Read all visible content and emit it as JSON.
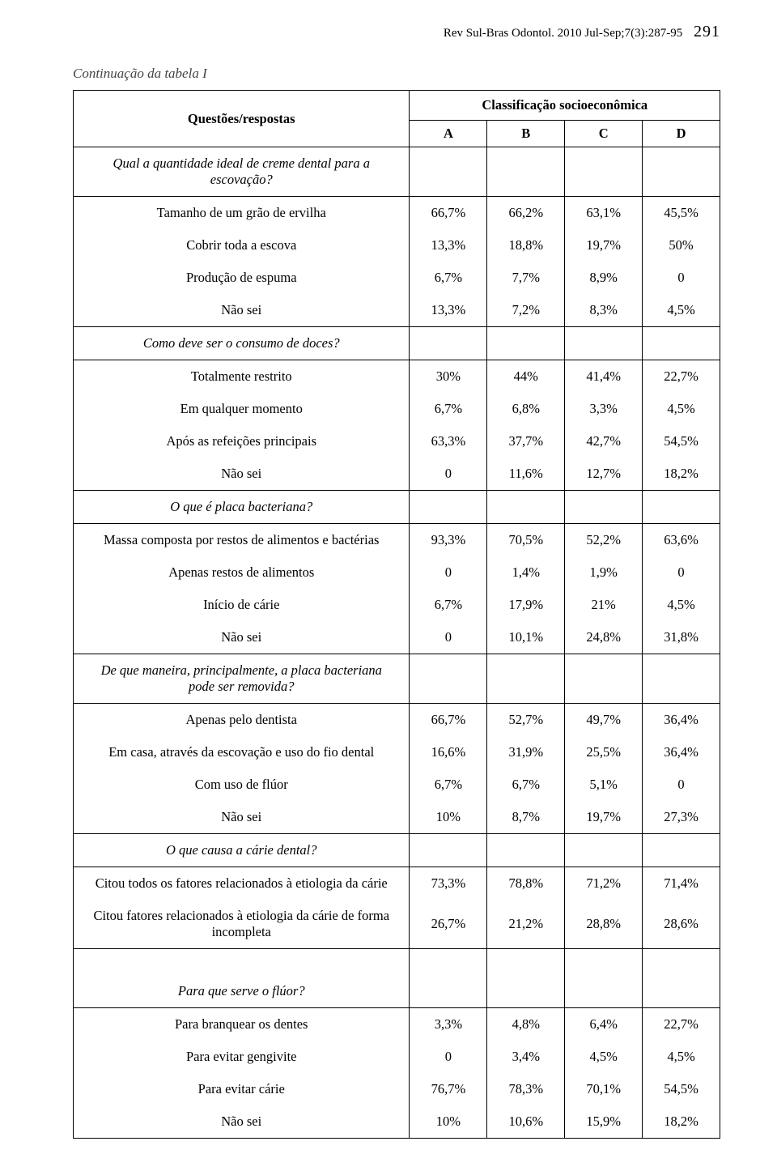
{
  "running_head": {
    "journal": "Rev Sul-Bras Odontol. 2010 Jul-Sep;7(3):287-95",
    "page_number": "291"
  },
  "caption": "Continuação da tabela I",
  "table": {
    "header": {
      "row_label": "Questões/respostas",
      "super_header": "Classificação socioeconômica",
      "columns": [
        "A",
        "B",
        "C",
        "D"
      ]
    },
    "groups": [
      {
        "question": "Qual a quantidade ideal de creme dental para a escovação?",
        "question_border_top": false,
        "question_border_bottom": true,
        "empty_values_row": true,
        "rows": [
          {
            "label": "Tamanho de um grão de ervilha",
            "values": [
              "66,7%",
              "66,2%",
              "63,1%",
              "45,5%"
            ]
          },
          {
            "label": "Cobrir toda a escova",
            "values": [
              "13,3%",
              "18,8%",
              "19,7%",
              "50%"
            ]
          },
          {
            "label": "Produção de espuma",
            "values": [
              "6,7%",
              "7,7%",
              "8,9%",
              "0"
            ]
          },
          {
            "label": "Não sei",
            "values": [
              "13,3%",
              "7,2%",
              "8,3%",
              "4,5%"
            ]
          }
        ]
      },
      {
        "question": "Como deve ser o consumo de doces?",
        "question_border_top": true,
        "question_border_bottom": true,
        "empty_values_row": false,
        "rows": [
          {
            "label": "Totalmente restrito",
            "values": [
              "30%",
              "44%",
              "41,4%",
              "22,7%"
            ]
          },
          {
            "label": "Em qualquer momento",
            "values": [
              "6,7%",
              "6,8%",
              "3,3%",
              "4,5%"
            ]
          },
          {
            "label": "Após as refeições principais",
            "values": [
              "63,3%",
              "37,7%",
              "42,7%",
              "54,5%"
            ]
          },
          {
            "label": "Não sei",
            "values": [
              "0",
              "11,6%",
              "12,7%",
              "18,2%"
            ]
          }
        ]
      },
      {
        "question": "O que é placa bacteriana?",
        "question_border_top": true,
        "question_border_bottom": true,
        "empty_values_row": false,
        "rows": [
          {
            "label": "Massa composta por restos de alimentos e bactérias",
            "values": [
              "93,3%",
              "70,5%",
              "52,2%",
              "63,6%"
            ]
          },
          {
            "label": "Apenas restos de alimentos",
            "values": [
              "0",
              "1,4%",
              "1,9%",
              "0"
            ]
          },
          {
            "label": "Início de cárie",
            "values": [
              "6,7%",
              "17,9%",
              "21%",
              "4,5%"
            ]
          },
          {
            "label": "Não sei",
            "values": [
              "0",
              "10,1%",
              "24,8%",
              "31,8%"
            ]
          }
        ]
      },
      {
        "question": "De que maneira, principalmente, a placa bacteriana pode ser removida?",
        "question_border_top": true,
        "question_border_bottom": true,
        "empty_values_row": false,
        "rows": [
          {
            "label": "Apenas pelo dentista",
            "values": [
              "66,7%",
              "52,7%",
              "49,7%",
              "36,4%"
            ]
          },
          {
            "label": "Em casa, através da escovação e uso do fio dental",
            "values": [
              "16,6%",
              "31,9%",
              "25,5%",
              "36,4%"
            ]
          },
          {
            "label": "Com uso de flúor",
            "values": [
              "6,7%",
              "6,7%",
              "5,1%",
              "0"
            ]
          },
          {
            "label": "Não sei",
            "values": [
              "10%",
              "8,7%",
              "19,7%",
              "27,3%"
            ]
          }
        ]
      },
      {
        "question": "O que causa a cárie dental?",
        "question_border_top": true,
        "question_border_bottom": true,
        "empty_values_row": false,
        "rows": [
          {
            "label": "Citou todos os fatores relacionados à etiologia da cárie",
            "values": [
              "73,3%",
              "78,8%",
              "71,2%",
              "71,4%"
            ]
          },
          {
            "label": "Citou fatores relacionados à etiologia da cárie de forma incompleta",
            "values": [
              "26,7%",
              "21,2%",
              "28,8%",
              "28,6%"
            ]
          }
        ]
      },
      {
        "question": "Para que serve o flúor?",
        "question_border_top": true,
        "question_border_bottom": true,
        "empty_values_row": false,
        "leading_spacer": true,
        "rows": [
          {
            "label": "Para branquear os dentes",
            "values": [
              "3,3%",
              "4,8%",
              "6,4%",
              "22,7%"
            ]
          },
          {
            "label": "Para evitar gengivite",
            "values": [
              "0",
              "3,4%",
              "4,5%",
              "4,5%"
            ]
          },
          {
            "label": "Para evitar cárie",
            "values": [
              "76,7%",
              "78,3%",
              "70,1%",
              "54,5%"
            ]
          },
          {
            "label": "Não sei",
            "values": [
              "10%",
              "10,6%",
              "15,9%",
              "18,2%"
            ],
            "final_bottom": true
          }
        ]
      }
    ]
  }
}
